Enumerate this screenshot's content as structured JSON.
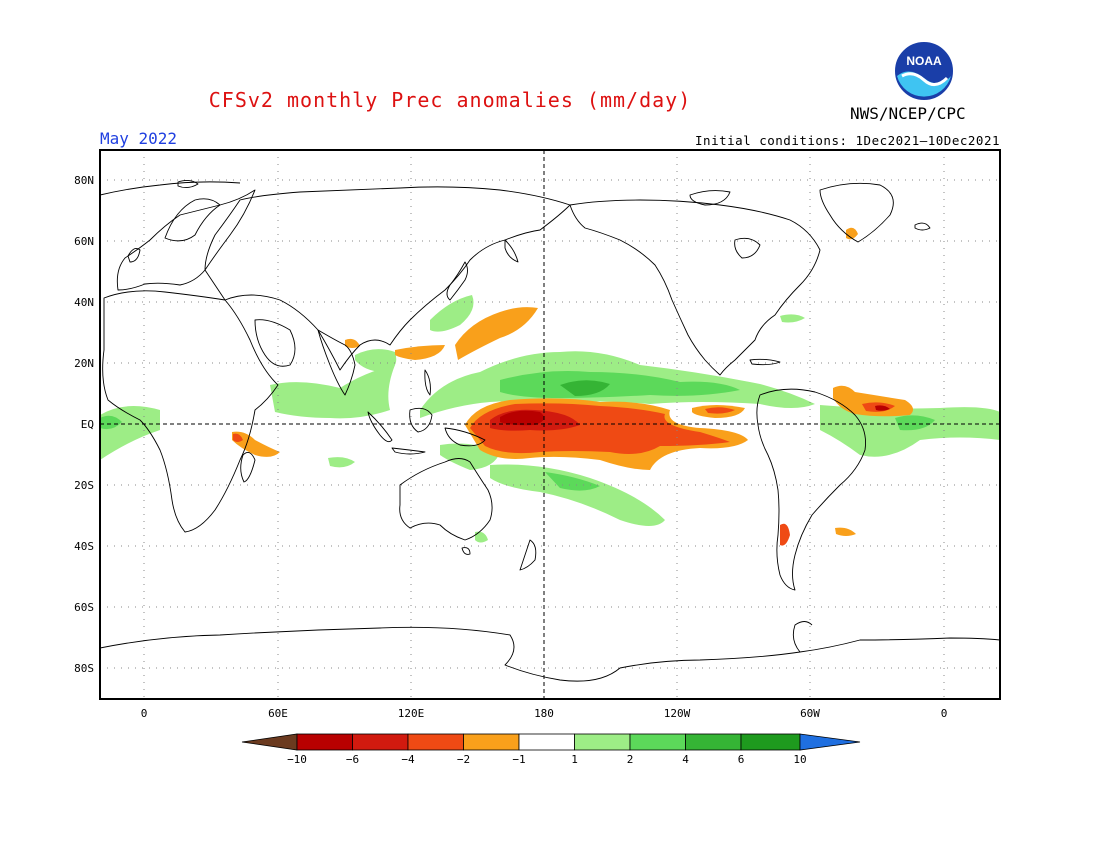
{
  "title": "CFSv2 monthly Prec anomalies (mm/day)",
  "agency": "NWS/NCEP/CPC",
  "logo_text": "NOAA",
  "month": "May 2022",
  "initial_conditions": "Initial conditions: 1Dec2021–10Dec2021",
  "lat_labels": [
    "80N",
    "60N",
    "40N",
    "20N",
    "EQ",
    "20S",
    "40S",
    "60S",
    "80S"
  ],
  "lon_labels": [
    "0",
    "60E",
    "120E",
    "180",
    "120W",
    "60W",
    "0"
  ],
  "colorbar": {
    "labels": [
      "−10",
      "−6",
      "−4",
      "−2",
      "−1",
      "1",
      "2",
      "4",
      "6",
      "10"
    ],
    "colors": [
      "#6b3a1f",
      "#b80000",
      "#d11a0f",
      "#ef4a14",
      "#f9a01b",
      "#ffffff",
      "#9ded86",
      "#5cd95a",
      "#35b435",
      "#1e9a1e",
      "#1f6fe0"
    ]
  },
  "anomaly_colors": {
    "wet_light": "#9ded86",
    "wet_mid": "#5cd95a",
    "wet_strong": "#35b435",
    "dry_light": "#f9a01b",
    "dry_mid": "#ef4a14",
    "dry_strong": "#d11a0f",
    "dry_extreme": "#b80000"
  }
}
